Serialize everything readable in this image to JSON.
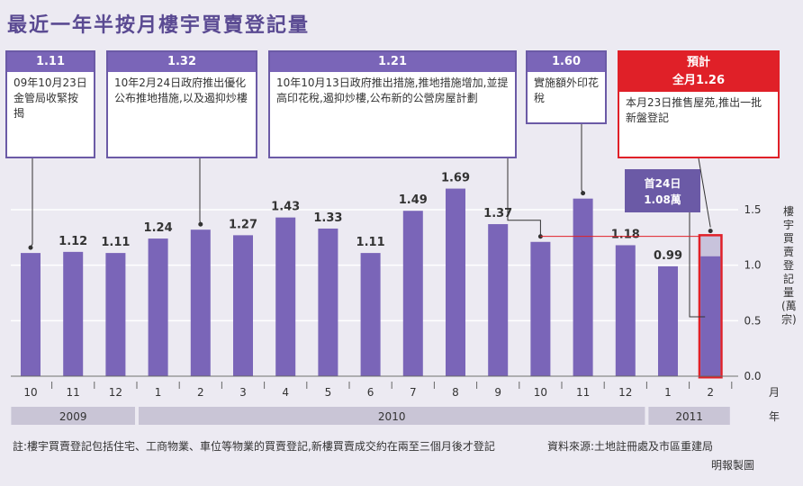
{
  "title": "最近一年半按月樓宇買賣登記量",
  "chart_data": {
    "type": "bar",
    "categories": [
      "10",
      "11",
      "12",
      "1",
      "2",
      "3",
      "4",
      "5",
      "6",
      "7",
      "8",
      "9",
      "10",
      "11",
      "12",
      "1",
      "2"
    ],
    "years": [
      {
        "label": "2009",
        "from": 0,
        "to": 2
      },
      {
        "label": "2010",
        "from": 3,
        "to": 14
      },
      {
        "label": "2011",
        "from": 15,
        "to": 16
      }
    ],
    "values": [
      1.11,
      1.12,
      1.11,
      1.24,
      1.32,
      1.27,
      1.43,
      1.33,
      1.11,
      1.49,
      1.69,
      1.37,
      1.21,
      1.6,
      1.18,
      0.99,
      1.26
    ],
    "value_labels": [
      "",
      "1.12",
      "1.11",
      "1.24",
      "",
      "1.27",
      "1.43",
      "1.33",
      "1.11",
      "1.49",
      "1.69",
      "1.37",
      "",
      "",
      "1.18",
      "0.99",
      ""
    ],
    "ylim": [
      0,
      1.8
    ],
    "yticks": [
      0.0,
      0.5,
      1.0,
      1.5
    ],
    "ytick_labels": [
      "0.0",
      "0.5",
      "1.0",
      "1.5"
    ],
    "ylabel": "樓宇買賣登記量(萬宗)",
    "x_unit": "月",
    "year_unit": "年",
    "partial": {
      "index": 16,
      "value": 1.08,
      "label_line1": "首24日",
      "label_line2": "1.08萬"
    },
    "colors": {
      "bar": "#7a65b8",
      "partial": "#c8c3dc",
      "highlight": "#e02028",
      "grid": "#ffffff",
      "year_band": "#c9c5d6"
    }
  },
  "callouts": [
    {
      "header": "1.11",
      "body": "09年10月23日金管局收緊按揭"
    },
    {
      "header": "1.32",
      "body": "10年2月24日政府推出優化公布推地措施,以及遏抑炒樓"
    },
    {
      "header": "1.21",
      "body": "10年10月13日政府推出措施,推地措施增加,並提高印花稅,遏抑炒樓,公布新的公營房屋計劃"
    },
    {
      "header": "1.60",
      "body": "實施額外印花稅"
    },
    {
      "header_line1": "預計",
      "header_line2": "全月1.26",
      "body": "本月23日推售屋苑,推出一批新盤登記"
    }
  ],
  "note": "註:樓宇買賣登記包括住宅、工商物業、車位等物業的買賣登記,新樓買賣成交約在兩至三個月後才登記",
  "source": "資料來源:土地註冊處及市區重建局",
  "author": "明報製圖"
}
